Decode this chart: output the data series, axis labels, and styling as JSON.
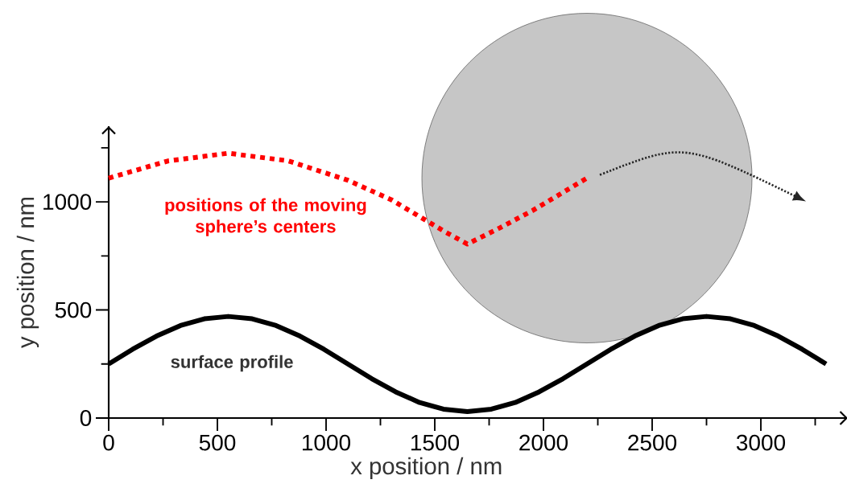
{
  "chart_data": {
    "type": "line",
    "xlabel": "x position / nm",
    "ylabel": "y position / nm",
    "xlim": [
      0,
      3400
    ],
    "ylim": [
      0,
      1350
    ],
    "xticks": [
      0,
      {
        "value": 250,
        "label": null
      },
      500,
      {
        "value": 750,
        "label": null
      },
      1000,
      {
        "value": 1250,
        "label": null
      },
      1500,
      {
        "value": 1750,
        "label": null
      },
      2000,
      {
        "value": 2250,
        "label": null
      },
      2500,
      {
        "value": 2750,
        "label": null
      },
      3000,
      {
        "value": 3250,
        "label": null
      }
    ],
    "yticks": [
      0,
      {
        "value": 250,
        "label": null
      },
      500,
      {
        "value": 750,
        "label": null
      },
      1000,
      {
        "value": 1250,
        "label": null
      }
    ],
    "grid": false,
    "series": [
      {
        "name": "positions of the moving sphere’s centers",
        "color": "#ff0000",
        "line_style": "dotted",
        "x": [
          0,
          275,
          550,
          825,
          1100,
          1300,
          1450,
          1550,
          1650,
          1800,
          1950,
          2100,
          2200
        ],
        "values": [
          1110,
          1190,
          1225,
          1190,
          1100,
          1010,
          920,
          860,
          805,
          880,
          960,
          1050,
          1110
        ]
      },
      {
        "name": "surface profile",
        "color": "#000000",
        "line_style": "solid",
        "x": [
          0,
          110,
          220,
          330,
          440,
          550,
          660,
          770,
          880,
          990,
          1100,
          1210,
          1320,
          1430,
          1540,
          1650,
          1760,
          1870,
          1980,
          2090,
          2200,
          2310,
          2420,
          2530,
          2640,
          2750,
          2860,
          2970,
          3080,
          3190,
          3300
        ],
        "values": [
          250,
          318,
          379,
          428,
          459,
          470,
          459,
          428,
          379,
          318,
          250,
          182,
          121,
          72,
          41,
          30,
          41,
          72,
          121,
          182,
          250,
          318,
          379,
          428,
          459,
          470,
          459,
          428,
          379,
          318,
          250
        ]
      }
    ]
  }
}
